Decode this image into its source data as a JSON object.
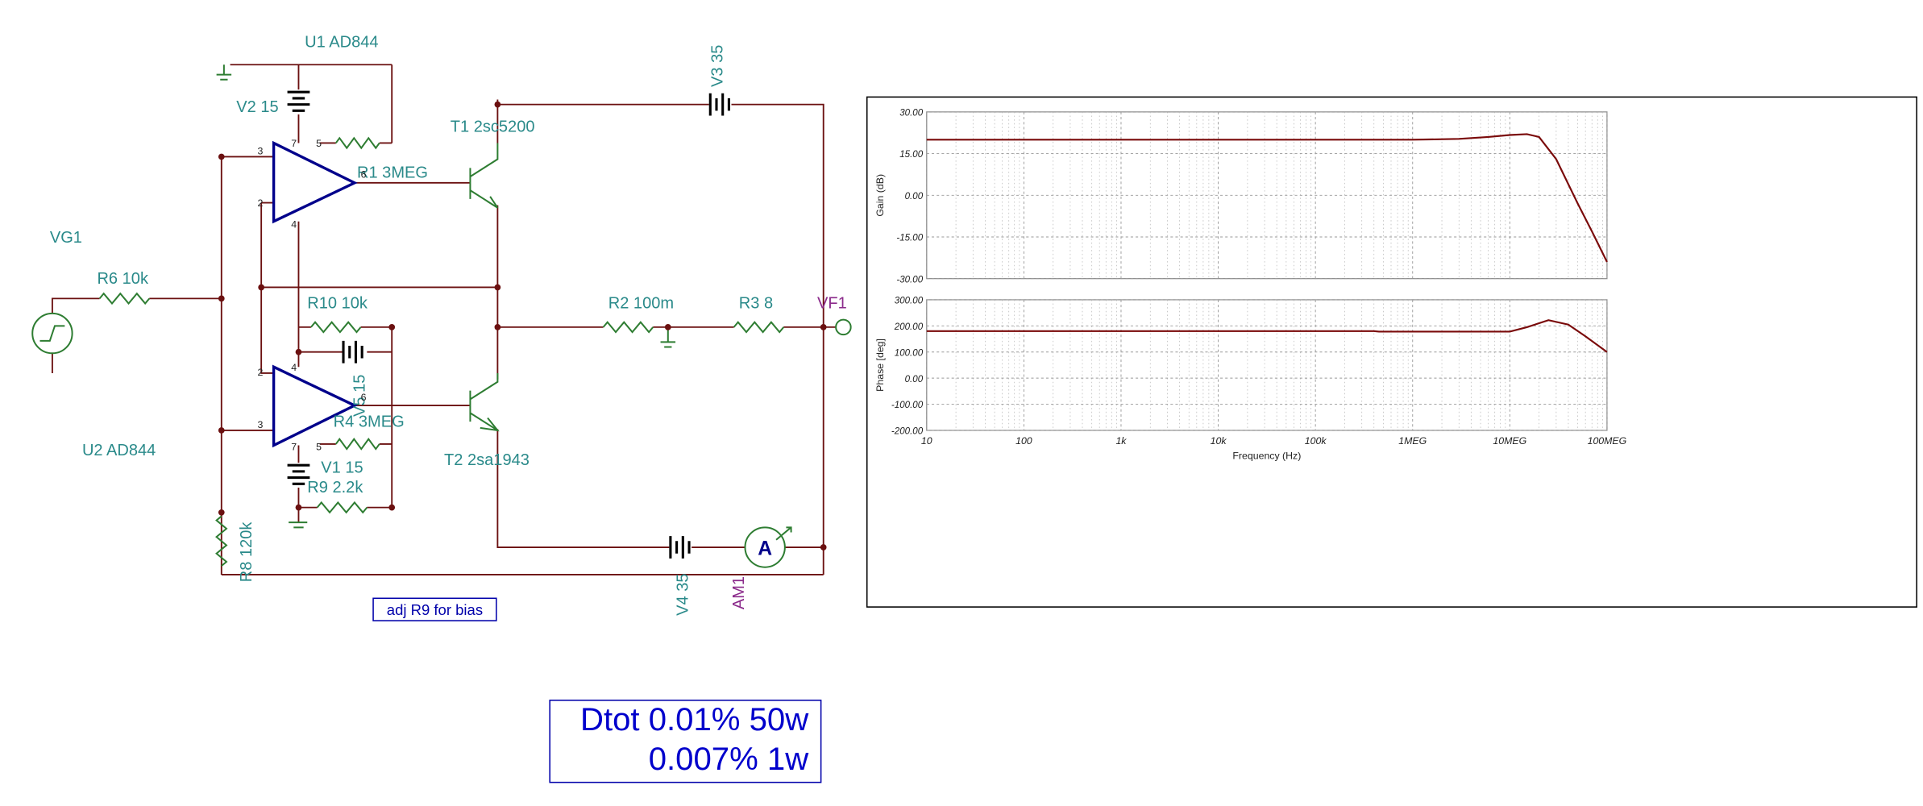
{
  "schematic": {
    "labels": [
      "U1 AD844",
      "V2 15",
      "T1 2sc5200",
      "V3 35",
      "R1 3MEG",
      "VG1",
      "R6 10k",
      "R10 10k",
      "R2 100m",
      "R3 8",
      "VF1",
      "V5 15",
      "R4 3MEG",
      "U2 AD844",
      "V1 15",
      "T2 2sa1943",
      "R9 2.2k",
      "R8 120k",
      "V4 35",
      "AM1",
      "A"
    ],
    "pins": [
      "3",
      "2",
      "7",
      "4",
      "5",
      "6",
      "2",
      "3",
      "4",
      "7",
      "5",
      "6"
    ],
    "note": "adj R9 for bias",
    "distortion": [
      "Dtot 0.01% 50w",
      "0.007% 1w"
    ]
  },
  "chart_data": [
    {
      "type": "line",
      "ylabel": "Gain (dB)",
      "xscale": "log",
      "grid": true,
      "xlim": [
        10,
        100000000
      ],
      "xticks": [
        10,
        100,
        1000,
        10000,
        100000,
        1000000,
        10000000,
        100000000
      ],
      "ylim": [
        -30,
        30
      ],
      "yticks": [
        {
          "value": 30,
          "label": "30.00"
        },
        {
          "value": 15,
          "label": "15.00"
        },
        {
          "value": 0,
          "label": "0.00"
        },
        {
          "value": -15,
          "label": "-15.00"
        },
        {
          "value": -30,
          "label": "-30.00"
        }
      ],
      "x": [
        10,
        100000,
        1000000,
        3000000,
        6000000,
        10000000,
        15000000,
        20000000,
        30000000,
        50000000,
        70000000,
        100000000
      ],
      "series": [
        {
          "color": "#7a0a0a",
          "values": [
            20,
            20,
            20,
            20.3,
            21,
            21.7,
            22,
            21,
            13,
            -3,
            -13,
            -24
          ]
        }
      ]
    },
    {
      "type": "line",
      "ylabel": "Phase [deg]",
      "xlabel": "Frequency (Hz)",
      "xscale": "log",
      "grid": true,
      "xlim": [
        10,
        100000000
      ],
      "xticks": [
        10,
        100,
        {
          "value": 1000,
          "label": "1k"
        },
        {
          "value": 10000,
          "label": "10k"
        },
        {
          "value": 100000,
          "label": "100k"
        },
        {
          "value": 1000000,
          "label": "1MEG"
        },
        {
          "value": 10000000,
          "label": "10MEG"
        },
        {
          "value": 100000000,
          "label": "100MEG"
        }
      ],
      "ylim": [
        -200,
        300
      ],
      "yticks": [
        {
          "value": 300,
          "label": "300.00"
        },
        {
          "value": 200,
          "label": "200.00"
        },
        {
          "value": 100,
          "label": "100.00"
        },
        {
          "value": 0,
          "label": "0.00"
        },
        {
          "value": -100,
          "label": "-100.00"
        },
        {
          "value": -200,
          "label": "-200.00"
        }
      ],
      "x": [
        10,
        400000,
        450000,
        10000000,
        15000000,
        25000000,
        40000000,
        60000000,
        100000000
      ],
      "series": [
        {
          "color": "#7a0a0a",
          "values": [
            180,
            180,
            178,
            178,
            195,
            222,
            205,
            160,
            100
          ]
        }
      ]
    }
  ]
}
